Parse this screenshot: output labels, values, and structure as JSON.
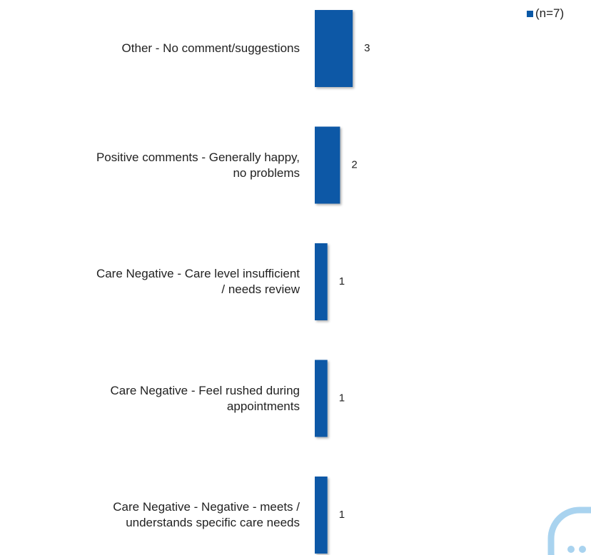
{
  "chart_data": {
    "type": "hbar",
    "categories": [
      "Other - No comment/suggestions",
      "Positive comments - Generally happy,\nno problems",
      "Care Negative - Care level insufficient\n/ needs review",
      "Care Negative - Feel rushed during\nappointments",
      "Care Negative - Negative - meets /\nunderstands specific care needs"
    ],
    "series": [
      {
        "name": "(n=7)",
        "color": "#0a58a6",
        "values": [
          3,
          2,
          1,
          1,
          1
        ]
      }
    ],
    "legend": "top-right"
  }
}
